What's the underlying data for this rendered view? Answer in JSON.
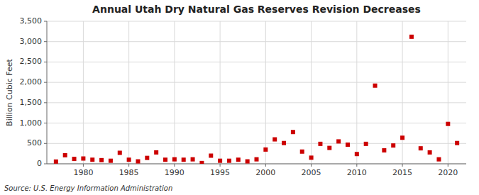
{
  "chart_data": {
    "type": "scatter",
    "title": "Annual Utah Dry Natural Gas Reserves Revision Decreases",
    "ylabel": "Billion Cubic Feet",
    "annotation": "Source: U.S. Energy Information Administration",
    "color": "#cc0000",
    "marker": "square",
    "grid": true,
    "x": [
      1977,
      1978,
      1979,
      1980,
      1981,
      1982,
      1983,
      1984,
      1985,
      1986,
      1987,
      1988,
      1989,
      1990,
      1991,
      1992,
      1993,
      1994,
      1995,
      1996,
      1997,
      1998,
      1999,
      2000,
      2001,
      2002,
      2003,
      2004,
      2005,
      2006,
      2007,
      2008,
      2009,
      2010,
      2011,
      2012,
      2013,
      2014,
      2015,
      2016,
      2017,
      2018,
      2019,
      2020,
      2021
    ],
    "values": [
      55,
      210,
      120,
      130,
      100,
      90,
      75,
      270,
      100,
      60,
      145,
      280,
      100,
      110,
      100,
      110,
      20,
      200,
      75,
      75,
      100,
      60,
      110,
      350,
      600,
      510,
      780,
      300,
      150,
      490,
      390,
      550,
      470,
      240,
      490,
      1920,
      330,
      450,
      640,
      3120,
      380,
      280,
      110,
      980,
      510
    ],
    "xlim": [
      1976,
      2022
    ],
    "xticks": [
      1980,
      1985,
      1990,
      1995,
      2000,
      2005,
      2010,
      2015,
      2020
    ],
    "ylim": [
      0,
      3500
    ],
    "yticks": [
      0,
      500,
      {
        "value": 1000,
        "label": "1,000"
      },
      {
        "value": 1500,
        "label": "1,500"
      },
      {
        "value": 2000,
        "label": "2,000"
      },
      {
        "value": 2500,
        "label": "2,500"
      },
      {
        "value": 3000,
        "label": "3,000"
      },
      {
        "value": 3500,
        "label": "3,500"
      }
    ]
  }
}
